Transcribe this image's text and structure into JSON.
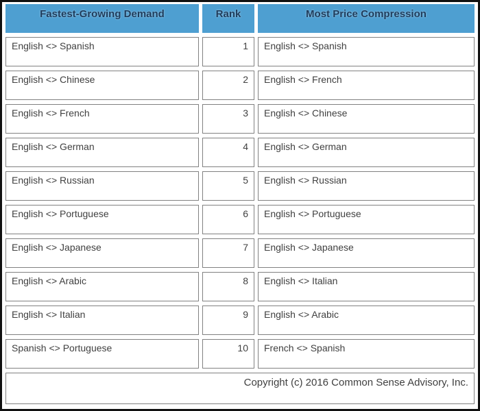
{
  "table": {
    "headers": {
      "demand": "Fastest-Growing Demand",
      "rank": "Rank",
      "compression": "Most Price Compression"
    },
    "rows": [
      {
        "demand": "English <> Spanish",
        "rank": "1",
        "compression": "English <> Spanish"
      },
      {
        "demand": "English <> Chinese",
        "rank": "2",
        "compression": "English <> French"
      },
      {
        "demand": "English <> French",
        "rank": "3",
        "compression": "English <> Chinese"
      },
      {
        "demand": "English <> German",
        "rank": "4",
        "compression": "English <> German"
      },
      {
        "demand": "English <> Russian",
        "rank": "5",
        "compression": "English <> Russian"
      },
      {
        "demand": "English <> Portuguese",
        "rank": "6",
        "compression": "English <> Portuguese"
      },
      {
        "demand": "English <> Japanese",
        "rank": "7",
        "compression": "English <> Japanese"
      },
      {
        "demand": "English <> Arabic",
        "rank": "8",
        "compression": "English <> Italian"
      },
      {
        "demand": "English <> Italian",
        "rank": "9",
        "compression": "English <> Arabic"
      },
      {
        "demand": "Spanish <> Portuguese",
        "rank": "10",
        "compression": "French <> Spanish"
      }
    ],
    "footer": "Copyright (c) 2016 Common Sense Advisory, Inc."
  },
  "colors": {
    "header_bg": "#4E9FD1",
    "header_text": "#1E3C5C",
    "cell_border": "#808080",
    "cell_text": "#404040",
    "outer_border": "#111111"
  }
}
